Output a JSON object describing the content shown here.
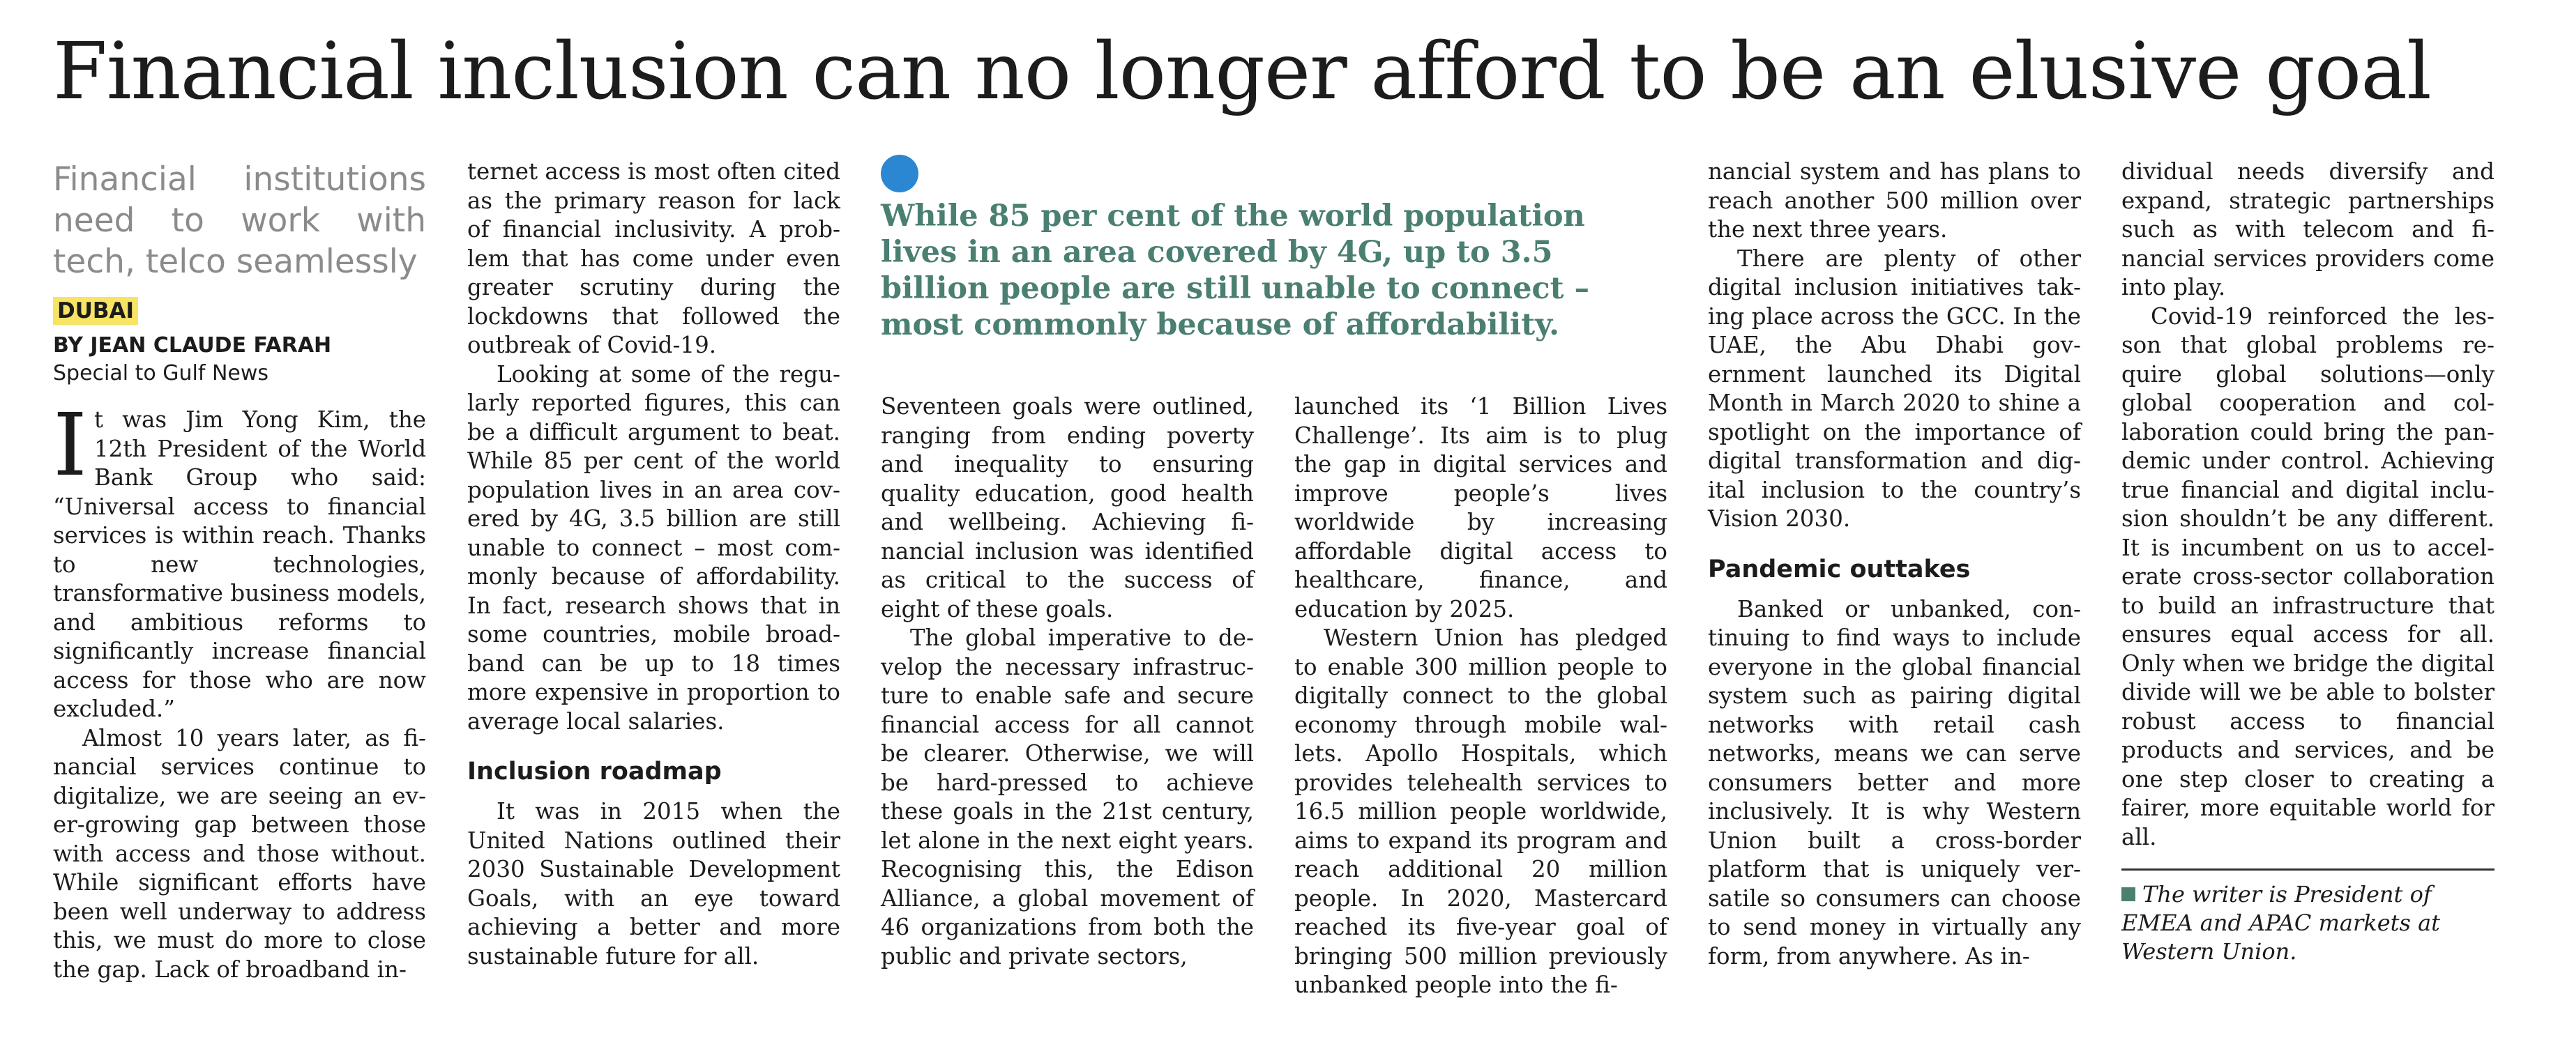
{
  "headline": "Financial inclusion can no longer afford to be an elusive goal",
  "deck": "Financial institutions need to work with tech, telco seamlessly",
  "dateline": "DUBAI",
  "byline": "BY JEAN CLAUDE FARAH",
  "byline_sub": "Special to Gulf News",
  "pullquote": "While 85 per cent of the world population lives in an area covered by 4G, up to 3.5 billion people are still unable to connect – most commonly because of affordability.",
  "colors": {
    "pullquote_text": "#4a7f72",
    "pullquote_dot": "#2b87d1",
    "dateline_highlight": "#f7e463"
  },
  "col1": {
    "dropcap": "I",
    "p1": "t was Jim Yong Kim, the 12th President of the World Bank Group who said: “Universal access to financial services is within reach. Thanks to new technologies, transformative business models, and ambitious reforms to significantly in­crease financial access for those who are now excluded.”",
    "p2": "Almost 10 years later, as fi­nancial services continue to digitalize, we are seeing an ev­er-growing gap between those with access and those without. While significant efforts have been well underway to address this, we must do more to close the gap. Lack of broadband in-"
  },
  "col2": {
    "p1": "ternet access is most often cited as the primary reason for lack of financial inclusivity. A prob­lem that has come under even greater scrutiny during the lockdowns that followed the outbreak of Covid-19.",
    "p2": "Looking at some of the regu­larly reported figures, this can be a difficult argument to beat. While 85 per cent of the world population lives in an area cov­ered by 4G, 3.5 billion are still unable to connect – most com­monly because of affordability. In fact, research shows that in some countries, mobile broad­band can be up to 18 times more expensive in proportion to average local salaries.",
    "subhead": "Inclusion roadmap",
    "p3": "It was in 2015 when the United Nations outlined their 2030 Sustainable Develop­ment Goals, with an eye to­ward achieving a better and more sustainable future for all."
  },
  "col3": {
    "p1": "Seventeen goals were outlined, ranging from ending poverty and inequality to ensuring quality education, good health and wellbeing. Achieving fi­nancial inclusion was identified as critical to the success of eight of these goals.",
    "p2": "The global imperative to de­velop the necessary infrastruc­ture to enable safe and secure financial access for all cannot be clearer. Otherwise, we will be hard-pressed to achieve these goals in the 21st century, let alone in the next eight years. Recognising this, the Edison Alliance, a global movement of 46 organizations from both the public and private sectors,"
  },
  "col4": {
    "p1": "launched its ‘1 Billion Lives Challenge’. Its aim is to plug the gap in digital services and im­prove people’s lives worldwide by increasing affordable digital access to healthcare, finance, and education by 2025.",
    "p2": "Western Union has pledged to enable 300 million people to digitally connect to the global economy through mobile wal­lets. Apollo Hospitals, which provides telehealth services to 16.5 million people worldwide, aims to expand its program and reach additional 20 million people. In 2020, Mastercard reached its five-year goal of bringing 500 million previously unbanked people into the fi-"
  },
  "col5": {
    "p1": "nancial system and has plans to reach another 500 million over the next three years.",
    "p2": "There are plenty of other digital inclusion initiatives tak­ing place across the GCC. In the UAE, the Abu Dhabi gov­ernment launched its Digital Month in March 2020 to shine a spotlight on the importance of digital transformation and dig­ital inclusion to the country’s Vision 2030.",
    "subhead": "Pandemic outtakes",
    "p3": "Banked or unbanked, con­tinuing to find ways to include everyone in the global financial system such as pairing digi­tal networks with retail cash networks, means we can serve consumers better and more inclusively. It is why Western Union built a cross-border platform that is uniquely ver­satile so consumers can choose to send money in virtually any form, from anywhere. As in-"
  },
  "col6": {
    "p1": "dividual needs diversify and expand, strategic partnerships such as with telecom and fi­nancial services providers come into play.",
    "p2": "Covid-19 reinforced the les­son that global problems re­quire global solutions—only global cooperation and col­laboration could bring the pan­demic under control. Achieving true financial and digital inclu­sion shouldn’t be any different. It is incumbent on us to accel­erate cross-sector collabora­tion to build an infrastructure that ensures equal access for all. Only when we bridge the digital divide will we be able to bolster robust access to finan­cial products and services, and be one step closer to creating a fairer, more equitable world for all.",
    "footnote": "The writer is President of EMEA and APAC markets at Western Union."
  }
}
